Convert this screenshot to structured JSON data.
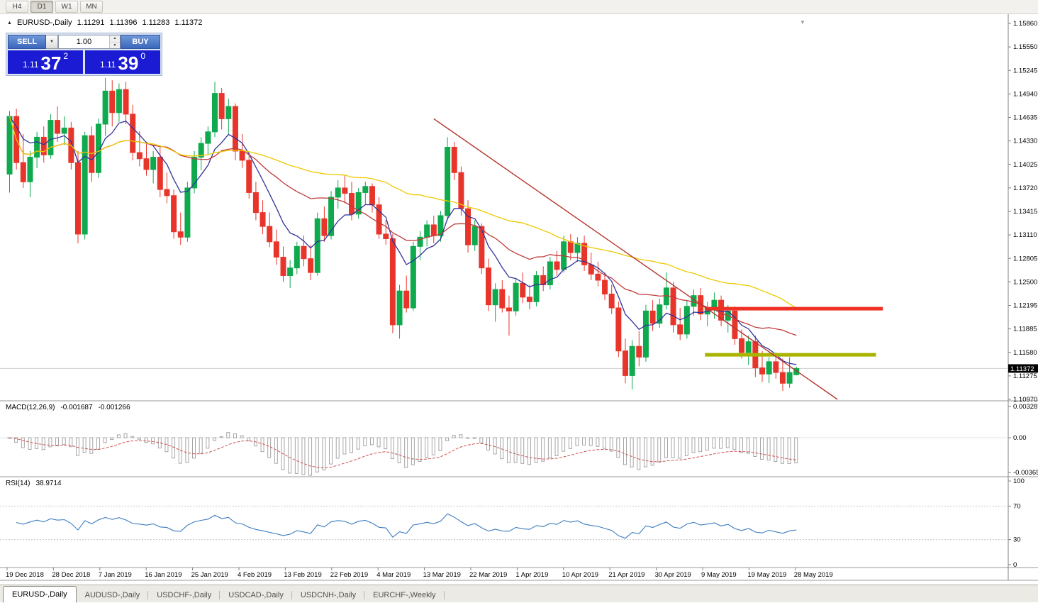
{
  "toolbar": {
    "timeframes": [
      "H4",
      "D1",
      "W1",
      "MN"
    ]
  },
  "icons": {
    "collapse": "▲",
    "dropdown": "▼",
    "spin_up": "▲",
    "spin_down": "▼",
    "scroll_end": "▼"
  },
  "chart_header": {
    "symbol": "EURUSD-,Daily",
    "open": "1.11291",
    "high": "1.11396",
    "low": "1.11283",
    "close": "1.11372"
  },
  "trade_panel": {
    "sell_label": "SELL",
    "buy_label": "BUY",
    "volume": "1.00",
    "sell_price": {
      "small": "1.11",
      "big": "37",
      "sup": "2"
    },
    "buy_price": {
      "small": "1.11",
      "big": "39",
      "sup": "0"
    }
  },
  "price_axis": {
    "labels": [
      "1.15860",
      "1.15550",
      "1.15245",
      "1.14940",
      "1.14635",
      "1.14330",
      "1.14025",
      "1.13720",
      "1.13415",
      "1.13110",
      "1.12805",
      "1.12500",
      "1.12195",
      "1.11885",
      "1.11580",
      "1.11275",
      "1.10970"
    ],
    "current": "1.11372"
  },
  "date_axis": {
    "labels": [
      "19 Dec 2018",
      "28 Dec 2018",
      "7 Jan 2019",
      "16 Jan 2019",
      "25 Jan 2019",
      "4 Feb 2019",
      "13 Feb 2019",
      "22 Feb 2019",
      "4 Mar 2019",
      "13 Mar 2019",
      "22 Mar 2019",
      "1 Apr 2019",
      "10 Apr 2019",
      "21 Apr 2019",
      "30 Apr 2019",
      "9 May 2019",
      "19 May 2019",
      "28 May 2019"
    ]
  },
  "macd_panel": {
    "name": "MACD(12,26,9)",
    "value1": "-0.001687",
    "value2": "-0.001266",
    "axis_labels": [
      "0.003287",
      "0.00",
      "-0.003655"
    ]
  },
  "rsi_panel": {
    "name": "RSI(14)",
    "value": "38.9714",
    "axis_labels": [
      "100",
      "70",
      "30",
      "0"
    ],
    "levels": [
      70,
      30
    ]
  },
  "tabs": [
    {
      "label": "EURUSD-,Daily",
      "active": true
    },
    {
      "label": "AUDUSD-,Daily",
      "active": false
    },
    {
      "label": "USDCHF-,Daily",
      "active": false
    },
    {
      "label": "USDCAD-,Daily",
      "active": false
    },
    {
      "label": "USDCNH-,Daily",
      "active": false
    },
    {
      "label": "EURCHF-,Weekly",
      "active": false
    }
  ],
  "chart_data": {
    "type": "candlestick",
    "symbol": "EURUSD-,Daily",
    "price_range": {
      "top": 1.1586,
      "bottom": 1.1097
    },
    "up_color": "#0fa94e",
    "down_color": "#e8352b",
    "candles": [
      [
        1.139,
        1.1472,
        1.1366,
        1.1465
      ],
      [
        1.1465,
        1.1475,
        1.1396,
        1.1405
      ],
      [
        1.1405,
        1.1442,
        1.1372,
        1.138
      ],
      [
        1.138,
        1.142,
        1.136,
        1.1412
      ],
      [
        1.1412,
        1.1445,
        1.1398,
        1.1438
      ],
      [
        1.1438,
        1.1452,
        1.1405,
        1.1415
      ],
      [
        1.1415,
        1.1468,
        1.141,
        1.146
      ],
      [
        1.146,
        1.1478,
        1.1432,
        1.1443
      ],
      [
        1.1443,
        1.1465,
        1.1428,
        1.145
      ],
      [
        1.145,
        1.1458,
        1.1396,
        1.1405
      ],
      [
        1.1405,
        1.142,
        1.13,
        1.1312
      ],
      [
        1.1312,
        1.1445,
        1.1305,
        1.144
      ],
      [
        1.144,
        1.1452,
        1.138,
        1.1392
      ],
      [
        1.1392,
        1.1462,
        1.1385,
        1.1455
      ],
      [
        1.1455,
        1.1515,
        1.144,
        1.1498
      ],
      [
        1.1498,
        1.1512,
        1.1452,
        1.147
      ],
      [
        1.147,
        1.1508,
        1.1458,
        1.15
      ],
      [
        1.15,
        1.151,
        1.1455,
        1.1468
      ],
      [
        1.1468,
        1.148,
        1.1408,
        1.1418
      ],
      [
        1.1418,
        1.1446,
        1.14,
        1.141
      ],
      [
        1.141,
        1.1432,
        1.1388,
        1.1396
      ],
      [
        1.1396,
        1.142,
        1.1378,
        1.1412
      ],
      [
        1.1412,
        1.1425,
        1.136,
        1.137
      ],
      [
        1.137,
        1.1392,
        1.1352,
        1.1362
      ],
      [
        1.1362,
        1.137,
        1.1306,
        1.1315
      ],
      [
        1.1315,
        1.134,
        1.1298,
        1.1308
      ],
      [
        1.1308,
        1.138,
        1.1302,
        1.1372
      ],
      [
        1.1372,
        1.142,
        1.1365,
        1.1412
      ],
      [
        1.1412,
        1.1438,
        1.1395,
        1.143
      ],
      [
        1.143,
        1.1452,
        1.1415,
        1.1445
      ],
      [
        1.1445,
        1.151,
        1.1438,
        1.1495
      ],
      [
        1.1495,
        1.1502,
        1.1448,
        1.1462
      ],
      [
        1.1462,
        1.1488,
        1.1442,
        1.1478
      ],
      [
        1.1478,
        1.1482,
        1.1408,
        1.142
      ],
      [
        1.142,
        1.1442,
        1.1398,
        1.1408
      ],
      [
        1.1408,
        1.1418,
        1.1358,
        1.1366
      ],
      [
        1.1366,
        1.138,
        1.133,
        1.134
      ],
      [
        1.134,
        1.1356,
        1.1312,
        1.1322
      ],
      [
        1.1322,
        1.134,
        1.1295,
        1.1302
      ],
      [
        1.1302,
        1.1318,
        1.1272,
        1.1282
      ],
      [
        1.1282,
        1.1296,
        1.125,
        1.1258
      ],
      [
        1.1258,
        1.1278,
        1.1242,
        1.1268
      ],
      [
        1.1268,
        1.1302,
        1.126,
        1.1296
      ],
      [
        1.1296,
        1.131,
        1.127,
        1.128
      ],
      [
        1.128,
        1.1298,
        1.1252,
        1.1262
      ],
      [
        1.1262,
        1.134,
        1.1258,
        1.1332
      ],
      [
        1.1332,
        1.1348,
        1.1302,
        1.131
      ],
      [
        1.131,
        1.1368,
        1.1305,
        1.136
      ],
      [
        1.136,
        1.1382,
        1.1345,
        1.1372
      ],
      [
        1.1372,
        1.1388,
        1.1352,
        1.1365
      ],
      [
        1.1365,
        1.138,
        1.133,
        1.1338
      ],
      [
        1.1338,
        1.1372,
        1.1332,
        1.1366
      ],
      [
        1.1366,
        1.138,
        1.135,
        1.1374
      ],
      [
        1.1374,
        1.1378,
        1.134,
        1.135
      ],
      [
        1.135,
        1.136,
        1.1306,
        1.1312
      ],
      [
        1.1312,
        1.133,
        1.1298,
        1.1306
      ],
      [
        1.1306,
        1.1312,
        1.1183,
        1.1194
      ],
      [
        1.1194,
        1.1246,
        1.1176,
        1.1238
      ],
      [
        1.1238,
        1.1258,
        1.121,
        1.1216
      ],
      [
        1.1216,
        1.1302,
        1.1212,
        1.1296
      ],
      [
        1.1296,
        1.1316,
        1.1278,
        1.1308
      ],
      [
        1.1308,
        1.133,
        1.1296,
        1.1324
      ],
      [
        1.1324,
        1.1336,
        1.13,
        1.131
      ],
      [
        1.131,
        1.1342,
        1.1302,
        1.1336
      ],
      [
        1.1336,
        1.1438,
        1.133,
        1.1425
      ],
      [
        1.1425,
        1.1432,
        1.1382,
        1.1392
      ],
      [
        1.1392,
        1.14,
        1.1336,
        1.1345
      ],
      [
        1.1345,
        1.1356,
        1.1288,
        1.1298
      ],
      [
        1.1298,
        1.133,
        1.129,
        1.1322
      ],
      [
        1.1322,
        1.1326,
        1.126,
        1.1268
      ],
      [
        1.1268,
        1.128,
        1.1212,
        1.122
      ],
      [
        1.122,
        1.1248,
        1.1198,
        1.124
      ],
      [
        1.124,
        1.1252,
        1.121,
        1.1216
      ],
      [
        1.1216,
        1.1232,
        1.118,
        1.1212
      ],
      [
        1.1212,
        1.1254,
        1.1206,
        1.1248
      ],
      [
        1.1248,
        1.1262,
        1.1222,
        1.123
      ],
      [
        1.123,
        1.1246,
        1.1214,
        1.1224
      ],
      [
        1.1224,
        1.1264,
        1.1218,
        1.1258
      ],
      [
        1.1258,
        1.127,
        1.1238,
        1.1246
      ],
      [
        1.1246,
        1.1282,
        1.124,
        1.1276
      ],
      [
        1.1276,
        1.129,
        1.1258,
        1.1266
      ],
      [
        1.1266,
        1.131,
        1.1262,
        1.1302
      ],
      [
        1.1302,
        1.1312,
        1.1278,
        1.1288
      ],
      [
        1.1288,
        1.1308,
        1.1276,
        1.13
      ],
      [
        1.13,
        1.131,
        1.1264,
        1.1272
      ],
      [
        1.1272,
        1.1288,
        1.1252,
        1.126
      ],
      [
        1.126,
        1.1276,
        1.1244,
        1.1252
      ],
      [
        1.1252,
        1.1262,
        1.1226,
        1.1234
      ],
      [
        1.1234,
        1.1246,
        1.1208,
        1.1216
      ],
      [
        1.1216,
        1.1224,
        1.1152,
        1.116
      ],
      [
        1.116,
        1.1176,
        1.1118,
        1.1128
      ],
      [
        1.1128,
        1.1174,
        1.111,
        1.1166
      ],
      [
        1.1166,
        1.1186,
        1.114,
        1.1152
      ],
      [
        1.1152,
        1.122,
        1.1146,
        1.1212
      ],
      [
        1.1212,
        1.1226,
        1.1186,
        1.1196
      ],
      [
        1.1196,
        1.1228,
        1.119,
        1.122
      ],
      [
        1.122,
        1.1262,
        1.1214,
        1.1242
      ],
      [
        1.1242,
        1.125,
        1.1184,
        1.1194
      ],
      [
        1.1194,
        1.1216,
        1.1174,
        1.1182
      ],
      [
        1.1182,
        1.1226,
        1.1176,
        1.1218
      ],
      [
        1.1218,
        1.124,
        1.1206,
        1.1232
      ],
      [
        1.1232,
        1.1242,
        1.12,
        1.1208
      ],
      [
        1.1208,
        1.1224,
        1.1192,
        1.1216
      ],
      [
        1.1216,
        1.1236,
        1.1202,
        1.1226
      ],
      [
        1.1226,
        1.1232,
        1.1192,
        1.12
      ],
      [
        1.12,
        1.122,
        1.1184,
        1.1212
      ],
      [
        1.1212,
        1.1218,
        1.1168,
        1.1176
      ],
      [
        1.1176,
        1.1188,
        1.115,
        1.1158
      ],
      [
        1.1158,
        1.118,
        1.1142,
        1.1172
      ],
      [
        1.1172,
        1.118,
        1.1126,
        1.1138
      ],
      [
        1.1138,
        1.116,
        1.112,
        1.113
      ],
      [
        1.113,
        1.1152,
        1.1118,
        1.1146
      ],
      [
        1.1146,
        1.1158,
        1.1124,
        1.1132
      ],
      [
        1.1132,
        1.115,
        1.1108,
        1.1118
      ],
      [
        1.1118,
        1.1152,
        1.1112,
        1.1132
      ],
      [
        1.11291,
        1.11396,
        1.11283,
        1.11372
      ]
    ],
    "moving_averages": [
      {
        "name": "ma-fast",
        "type": "ema",
        "period": 8,
        "color": "#32329b"
      },
      {
        "name": "ma-medium",
        "type": "sma",
        "period": 21,
        "color": "#c03a3a"
      },
      {
        "name": "ma-slow",
        "type": "sma",
        "period": 50,
        "color": "#eec900"
      }
    ],
    "trendline": {
      "from_bar": 62,
      "from_price": 1.1462,
      "to_bar": 121,
      "to_price": 1.1096,
      "color": "#b4342c"
    },
    "resistance_line": {
      "price": 1.1215,
      "from_bar": 102,
      "to_bar": 128,
      "color": "#ee3124",
      "width": 5
    },
    "support_line": {
      "price": 1.1155,
      "from_bar": 102,
      "to_bar": 127,
      "color": "#a8b400",
      "width": 5
    },
    "macd": {
      "fast": 12,
      "slow": 26,
      "signal": 9,
      "range": {
        "top": 0.003287,
        "bottom": -0.003655
      },
      "histogram_color": "#9c9c9c",
      "signal_color": "#cc5555"
    },
    "rsi": {
      "period": 14,
      "color": "#3c7bbf",
      "range": [
        0,
        100
      ]
    }
  }
}
